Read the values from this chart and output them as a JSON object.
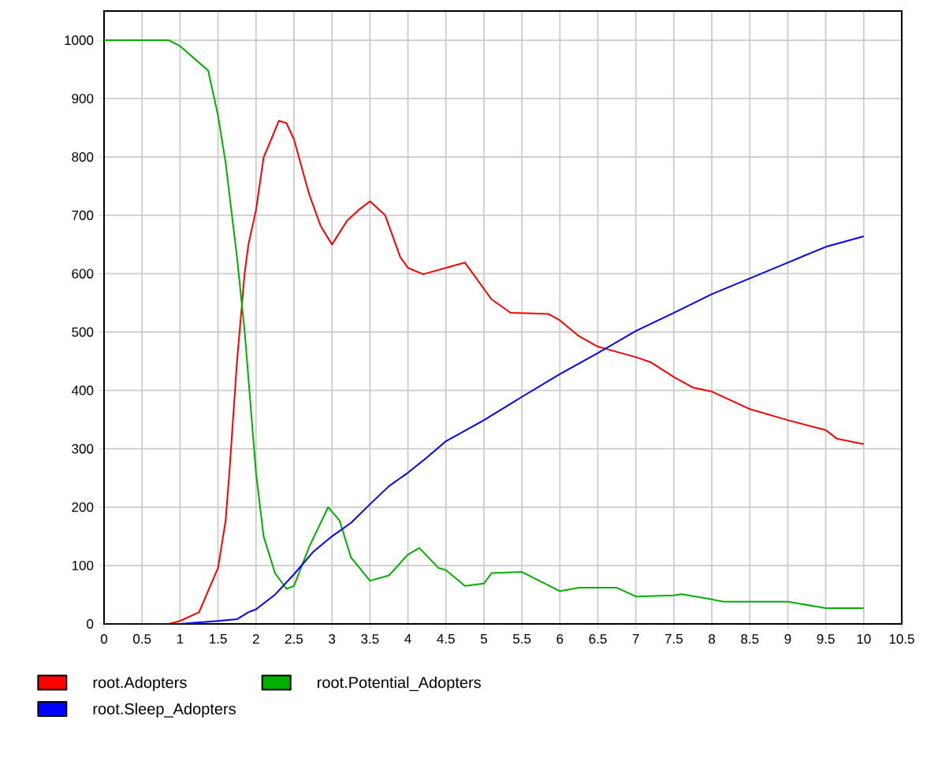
{
  "chart_data": {
    "type": "line",
    "xlim": [
      0,
      10.5
    ],
    "xticks": [
      0,
      0.5,
      1,
      1.5,
      2,
      2.5,
      3,
      3.5,
      4,
      4.5,
      5,
      5.5,
      6,
      6.5,
      7,
      7.5,
      8,
      8.5,
      9,
      9.5,
      10,
      10.5
    ],
    "ylim": [
      0,
      1050
    ],
    "yticks": [
      0,
      100,
      200,
      300,
      400,
      500,
      600,
      700,
      800,
      900,
      1000
    ],
    "grid": true,
    "legend": "bottom",
    "marker": "none",
    "line_style": "solid",
    "series": [
      {
        "name": "root.Adopters",
        "color": "#ff0000",
        "x": [
          0,
          0.5,
          0.85,
          1.0,
          1.25,
          1.5,
          1.6,
          1.65,
          1.75,
          1.85,
          1.9,
          2.0,
          2.1,
          2.2,
          2.3,
          2.4,
          2.5,
          2.7,
          2.85,
          3.0,
          3.2,
          3.35,
          3.5,
          3.7,
          3.9,
          4.0,
          4.2,
          4.5,
          4.75,
          5.1,
          5.35,
          5.85,
          6.0,
          6.25,
          6.5,
          7.0,
          7.2,
          7.5,
          7.75,
          8.0,
          8.5,
          9.0,
          9.5,
          9.65,
          10.0
        ],
        "values": [
          0,
          0,
          0,
          5,
          20,
          96,
          177,
          260,
          450,
          600,
          650,
          709,
          799,
          830,
          862,
          858,
          830,
          736,
          682,
          650,
          691,
          709,
          724,
          700,
          628,
          610,
          599,
          610,
          619,
          556,
          533,
          531,
          520,
          493,
          475,
          457,
          448,
          423,
          405,
          398,
          368,
          349,
          332,
          317,
          308
        ]
      },
      {
        "name": "root.Potential_Adopters",
        "color": "#00b000",
        "x": [
          0,
          0.5,
          0.85,
          1.0,
          1.37,
          1.5,
          1.6,
          1.75,
          1.85,
          2.0,
          2.1,
          2.25,
          2.4,
          2.5,
          2.7,
          2.95,
          3.1,
          3.25,
          3.5,
          3.75,
          4.0,
          4.15,
          4.4,
          4.5,
          4.75,
          5.0,
          5.1,
          5.5,
          6.0,
          6.25,
          6.75,
          7.0,
          7.5,
          7.6,
          8.0,
          8.15,
          9.0,
          9.5,
          10.0
        ],
        "values": [
          1000,
          1000,
          1000,
          990,
          948,
          871,
          790,
          628,
          502,
          259,
          150,
          87,
          60,
          65,
          132,
          200,
          177,
          114,
          74,
          83,
          119,
          130,
          96,
          92,
          65,
          69,
          87,
          89,
          56,
          62,
          62,
          47,
          49,
          51,
          42,
          38,
          38,
          27,
          27
        ]
      },
      {
        "name": "root.Sleep_Adopters",
        "color": "#0000ff",
        "x": [
          0,
          0.5,
          1.0,
          1.5,
          1.75,
          1.9,
          2.0,
          2.25,
          2.5,
          2.75,
          3.0,
          3.25,
          3.5,
          3.75,
          4.0,
          4.25,
          4.5,
          5.0,
          5.5,
          6.0,
          6.5,
          7.0,
          7.5,
          8.0,
          8.5,
          9.0,
          9.5,
          10.0
        ],
        "values": [
          0,
          0,
          0,
          5,
          8,
          20,
          25,
          50,
          85,
          123,
          150,
          173,
          205,
          236,
          259,
          285,
          313,
          349,
          389,
          428,
          464,
          502,
          533,
          565,
          592,
          619,
          646,
          664
        ]
      }
    ]
  }
}
